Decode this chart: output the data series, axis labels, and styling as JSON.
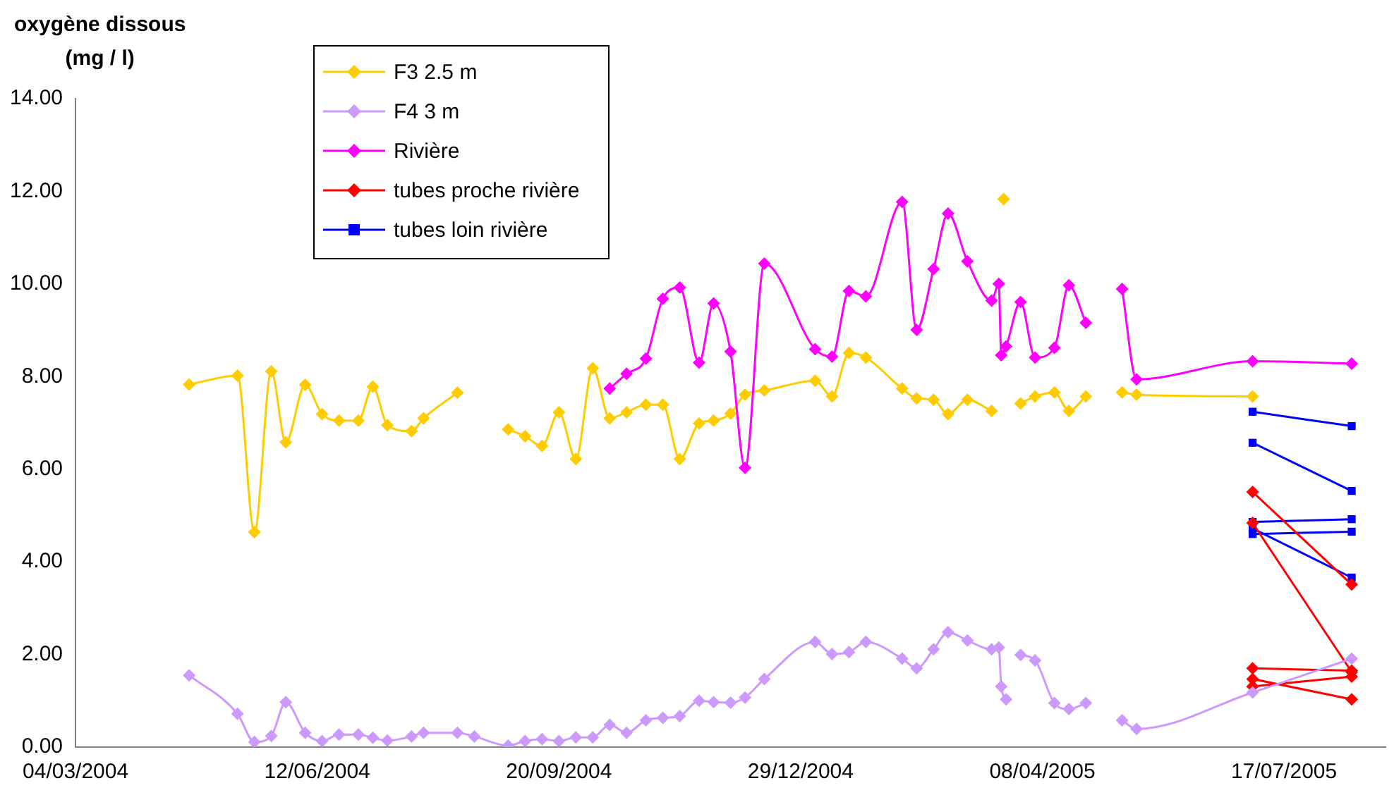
{
  "chart_data": {
    "type": "line",
    "ylabel": "oxygène dissous\n(mg / l)",
    "xlim": [
      "2004-03-04",
      "2005-08-28"
    ],
    "xticks": [
      {
        "value": "2004-03-04",
        "label": "04/03/2004"
      },
      {
        "value": "2004-06-12",
        "label": "12/06/2004"
      },
      {
        "value": "2004-09-20",
        "label": "20/09/2004"
      },
      {
        "value": "2004-12-29",
        "label": "29/12/2004"
      },
      {
        "value": "2005-04-08",
        "label": "08/04/2005"
      },
      {
        "value": "2005-07-17",
        "label": "17/07/2005"
      }
    ],
    "ylim": [
      0,
      14
    ],
    "yticks": [
      {
        "value": 0,
        "label": "0.00"
      },
      {
        "value": 2,
        "label": "2.00"
      },
      {
        "value": 4,
        "label": "4.00"
      },
      {
        "value": 6,
        "label": "6.00"
      },
      {
        "value": 8,
        "label": "8.00"
      },
      {
        "value": 10,
        "label": "10.00"
      },
      {
        "value": 12,
        "label": "12.00"
      },
      {
        "value": 14,
        "label": "14.00"
      }
    ],
    "grid": false,
    "legend": "top left",
    "series": [
      {
        "name": "F3 2.5 m",
        "color": "#ffcc00",
        "marker": "diamond",
        "x": [
          "2004-04-20",
          "2004-05-10",
          "2004-05-17",
          "2004-05-24",
          "2004-05-30",
          "2004-06-07",
          "2004-06-14",
          "2004-06-21",
          "2004-06-29",
          "2004-07-05",
          "2004-07-11",
          "2004-07-21",
          "2004-07-26",
          "2004-08-09"
        ],
        "values": [
          7.83,
          8.02,
          4.64,
          8.11,
          6.58,
          7.82,
          7.19,
          7.05,
          7.05,
          7.78,
          6.95,
          6.82,
          7.1,
          7.65
        ]
      },
      {
        "name": "F4 3 m",
        "color": "#cc99ff",
        "marker": "diamond",
        "x": [
          "2004-04-20",
          "2004-05-10",
          "2004-05-17",
          "2004-05-24",
          "2004-05-30",
          "2004-06-07",
          "2004-06-14",
          "2004-06-21",
          "2004-06-29",
          "2004-07-05",
          "2004-07-11",
          "2004-07-21",
          "2004-07-26",
          "2004-08-09",
          "2004-08-16",
          "2004-08-30",
          "2004-09-06",
          "2004-09-13",
          "2004-09-20",
          "2004-09-27",
          "2004-10-04",
          "2004-10-11",
          "2004-10-18",
          "2004-10-26",
          "2004-11-02",
          "2004-11-09",
          "2004-11-17",
          "2004-11-23",
          "2004-11-30",
          "2004-12-06",
          "2004-12-14",
          "2005-01-04",
          "2005-01-11",
          "2005-01-18",
          "2005-01-25",
          "2005-02-09",
          "2005-02-15",
          "2005-02-22",
          "2005-02-28",
          "2005-03-08",
          "2005-03-18",
          "2005-03-21",
          "2005-03-22",
          "2005-03-24"
        ],
        "values": [
          1.55,
          0.72,
          0.11,
          0.24,
          0.97,
          0.31,
          0.13,
          0.27,
          0.27,
          0.2,
          0.14,
          0.23,
          0.31,
          0.31,
          0.23,
          0.03,
          0.13,
          0.17,
          0.13,
          0.21,
          0.21,
          0.48,
          0.31,
          0.58,
          0.63,
          0.67,
          1.0,
          0.97,
          0.96,
          1.07,
          1.47,
          2.27,
          2.01,
          2.05,
          2.27,
          1.91,
          1.7,
          2.11,
          2.48,
          2.3,
          2.11,
          2.15,
          1.31,
          1.03
        ]
      },
      {
        "name": "Rivière",
        "color": "#ff00ff",
        "marker": "diamond",
        "x": [
          "2004-10-11",
          "2004-10-18",
          "2004-10-26",
          "2004-11-02",
          "2004-11-09",
          "2004-11-17",
          "2004-11-23",
          "2004-11-30",
          "2004-12-06",
          "2004-12-14",
          "2005-01-04",
          "2005-01-11",
          "2005-01-18",
          "2005-01-25",
          "2005-02-09",
          "2005-02-15",
          "2005-02-22",
          "2005-02-28",
          "2005-03-08",
          "2005-03-18",
          "2005-03-21",
          "2005-03-22",
          "2005-03-24",
          "2005-03-30",
          "2005-04-05",
          "2005-04-13",
          "2005-04-19",
          "2005-04-26"
        ],
        "values": [
          7.74,
          8.06,
          8.39,
          9.68,
          9.92,
          8.3,
          9.58,
          8.54,
          6.03,
          10.44,
          8.59,
          8.43,
          9.85,
          9.73,
          11.77,
          9.01,
          10.32,
          11.52,
          10.49,
          9.64,
          10.0,
          8.46,
          8.65,
          9.61,
          8.41,
          8.62,
          9.97,
          9.16
        ]
      },
      {
        "name": "tubes proche rivière",
        "color": "#ff0000",
        "marker": "diamond",
        "x": [
          "2005-07-04",
          "2005-08-14"
        ],
        "values": [
          5.51,
          3.51
        ]
      },
      {
        "name": "tubes loin rivière",
        "color": "#0000ff",
        "marker": "square",
        "x": [
          "2005-07-04",
          "2005-08-14"
        ],
        "values": [
          7.24,
          6.93
        ]
      },
      {
        "color": "#ffcc00",
        "marker": "diamond",
        "x": [
          "2004-08-30",
          "2004-09-06",
          "2004-09-13",
          "2004-09-20",
          "2004-09-27",
          "2004-10-04",
          "2004-10-11",
          "2004-10-18",
          "2004-10-26",
          "2004-11-02",
          "2004-11-09",
          "2004-11-17",
          "2004-11-23",
          "2004-11-30",
          "2004-12-06",
          "2004-12-14",
          "2005-01-04",
          "2005-01-11",
          "2005-01-18",
          "2005-01-25",
          "2005-02-09",
          "2005-02-15",
          "2005-02-22",
          "2005-02-28",
          "2005-03-08",
          "2005-03-18"
        ],
        "values": [
          6.86,
          6.71,
          6.5,
          7.23,
          6.22,
          8.18,
          7.1,
          7.23,
          7.39,
          7.39,
          6.22,
          6.99,
          7.05,
          7.2,
          7.61,
          7.7,
          7.91,
          7.57,
          8.51,
          8.41,
          7.74,
          7.53,
          7.5,
          7.19,
          7.5,
          7.26
        ]
      },
      {
        "color": "#ffcc00",
        "marker": "diamond",
        "x": [
          "2005-03-23"
        ],
        "values": [
          11.83
        ]
      },
      {
        "color": "#ffcc00",
        "marker": "diamond",
        "x": [
          "2005-03-30",
          "2005-04-05",
          "2005-04-13",
          "2005-04-19",
          "2005-04-26"
        ],
        "values": [
          7.42,
          7.57,
          7.66,
          7.26,
          7.57
        ]
      },
      {
        "color": "#ffcc00",
        "marker": "diamond",
        "x": [
          "2005-05-11",
          "2005-05-17",
          "2005-07-04"
        ],
        "values": [
          7.66,
          7.61,
          7.57
        ]
      },
      {
        "color": "#cc99ff",
        "marker": "diamond",
        "x": [
          "2005-03-30",
          "2005-04-05",
          "2005-04-13",
          "2005-04-19",
          "2005-04-26"
        ],
        "values": [
          1.99,
          1.87,
          0.95,
          0.82,
          0.95
        ]
      },
      {
        "color": "#cc99ff",
        "marker": "diamond",
        "x": [
          "2005-05-11",
          "2005-05-17",
          "2005-07-04",
          "2005-08-14"
        ],
        "values": [
          0.58,
          0.39,
          1.18,
          1.91
        ]
      },
      {
        "color": "#ff00ff",
        "marker": "diamond",
        "x": [
          "2005-05-11",
          "2005-05-17",
          "2005-07-04",
          "2005-08-14"
        ],
        "values": [
          9.89,
          7.94,
          8.33,
          8.28
        ]
      },
      {
        "color": "#ff0000",
        "marker": "diamond",
        "x": [
          "2005-07-04",
          "2005-08-14"
        ],
        "values": [
          4.84,
          1.62
        ]
      },
      {
        "color": "#ff0000",
        "marker": "diamond",
        "x": [
          "2005-07-04",
          "2005-08-14"
        ],
        "values": [
          1.7,
          1.65
        ]
      },
      {
        "color": "#ff0000",
        "marker": "diamond",
        "x": [
          "2005-07-04",
          "2005-08-14"
        ],
        "values": [
          1.47,
          1.03
        ]
      },
      {
        "color": "#ff0000",
        "marker": "diamond",
        "x": [
          "2005-07-04",
          "2005-08-14"
        ],
        "values": [
          1.31,
          1.52
        ]
      },
      {
        "color": "#0000ff",
        "marker": "square",
        "x": [
          "2005-07-04",
          "2005-08-14"
        ],
        "values": [
          6.57,
          5.53
        ]
      },
      {
        "color": "#0000ff",
        "marker": "square",
        "x": [
          "2005-07-04",
          "2005-08-14"
        ],
        "values": [
          4.86,
          4.92
        ]
      },
      {
        "color": "#0000ff",
        "marker": "square",
        "x": [
          "2005-07-04",
          "2005-08-14"
        ],
        "values": [
          4.6,
          4.65
        ]
      },
      {
        "color": "#0000ff",
        "marker": "square",
        "x": [
          "2005-07-04",
          "2005-08-14"
        ],
        "values": [
          4.72,
          3.66
        ]
      }
    ]
  }
}
